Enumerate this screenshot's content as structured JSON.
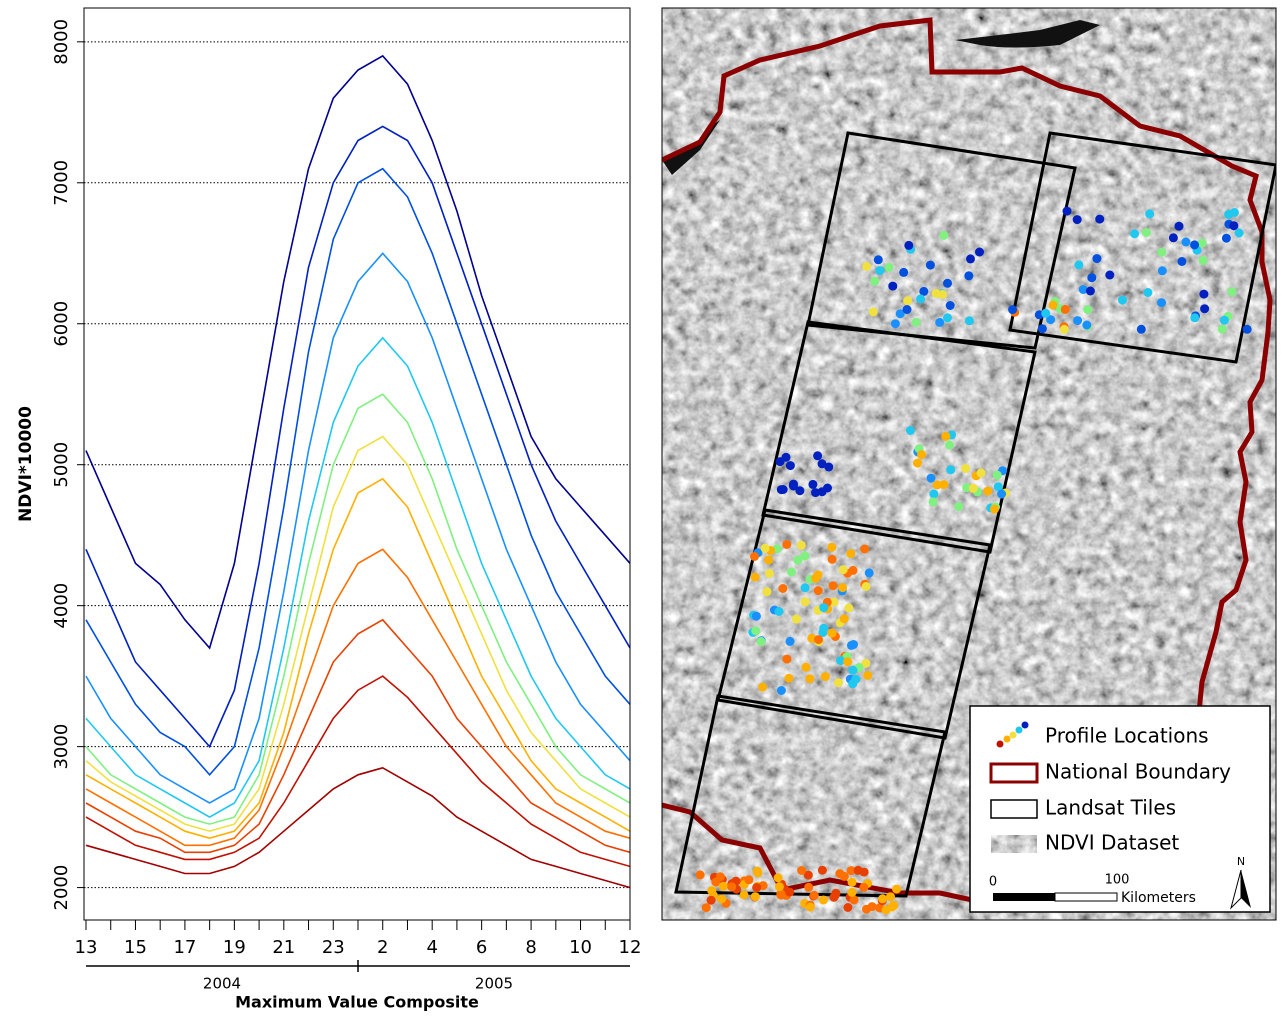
{
  "chart_data": {
    "type": "line",
    "categories": [
      "13",
      null,
      "15",
      null,
      "17",
      null,
      "19",
      null,
      "21",
      null,
      "23",
      null,
      "2",
      null,
      "4",
      null,
      "6",
      null,
      "8",
      null,
      "10",
      null,
      "12"
    ],
    "x_groups": [
      "2004",
      "2005"
    ],
    "xlabel": "Maximum Value Composite",
    "ylabel": "NDVI*10000",
    "ylim": [
      1770,
      8240
    ],
    "yticks": [
      2000,
      3000,
      4000,
      5000,
      6000,
      7000,
      8000
    ],
    "grid": true,
    "series": [
      {
        "color": "#00008f",
        "values": [
          5100,
          4700,
          4300,
          4150,
          3900,
          3700,
          4300,
          5300,
          6300,
          7100,
          7600,
          7800,
          7900,
          7700,
          7300,
          6800,
          6200,
          5700,
          5200,
          4900,
          4700,
          4500,
          4300
        ]
      },
      {
        "color": "#0020c0",
        "values": [
          4400,
          4000,
          3600,
          3400,
          3200,
          3000,
          3400,
          4300,
          5400,
          6400,
          7000,
          7300,
          7400,
          7300,
          7000,
          6500,
          6000,
          5500,
          5000,
          4600,
          4300,
          4000,
          3700
        ]
      },
      {
        "color": "#0050e0",
        "values": [
          3900,
          3600,
          3300,
          3100,
          3000,
          2800,
          3000,
          3700,
          4700,
          5800,
          6600,
          7000,
          7100,
          6900,
          6500,
          6000,
          5500,
          5000,
          4500,
          4100,
          3800,
          3500,
          3300
        ]
      },
      {
        "color": "#1a90ff",
        "values": [
          3500,
          3200,
          3000,
          2800,
          2700,
          2600,
          2700,
          3200,
          4100,
          5100,
          5900,
          6300,
          6500,
          6300,
          5900,
          5400,
          4900,
          4400,
          4000,
          3600,
          3300,
          3100,
          2900
        ]
      },
      {
        "color": "#20c8f0",
        "values": [
          3200,
          3000,
          2800,
          2700,
          2600,
          2500,
          2600,
          2900,
          3700,
          4600,
          5300,
          5700,
          5900,
          5700,
          5300,
          4800,
          4300,
          3900,
          3500,
          3200,
          3000,
          2800,
          2700
        ]
      },
      {
        "color": "#80f080",
        "values": [
          3000,
          2800,
          2700,
          2600,
          2500,
          2450,
          2500,
          2800,
          3500,
          4300,
          5000,
          5400,
          5500,
          5300,
          4900,
          4400,
          4000,
          3600,
          3300,
          3000,
          2800,
          2700,
          2600
        ]
      },
      {
        "color": "#f0e040",
        "values": [
          2900,
          2750,
          2650,
          2550,
          2450,
          2400,
          2450,
          2700,
          3300,
          4000,
          4700,
          5100,
          5200,
          5000,
          4600,
          4200,
          3800,
          3400,
          3100,
          2900,
          2700,
          2600,
          2500
        ]
      },
      {
        "color": "#ffb000",
        "values": [
          2800,
          2700,
          2600,
          2500,
          2400,
          2350,
          2400,
          2600,
          3100,
          3800,
          4400,
          4800,
          4900,
          4700,
          4300,
          3900,
          3500,
          3200,
          2900,
          2700,
          2600,
          2500,
          2400
        ]
      },
      {
        "color": "#ff7000",
        "values": [
          2700,
          2600,
          2500,
          2400,
          2300,
          2300,
          2350,
          2550,
          3000,
          3500,
          4000,
          4300,
          4400,
          4200,
          3900,
          3600,
          3300,
          3000,
          2800,
          2600,
          2500,
          2400,
          2350
        ]
      },
      {
        "color": "#e84000",
        "values": [
          2600,
          2500,
          2400,
          2350,
          2250,
          2250,
          2300,
          2450,
          2800,
          3200,
          3600,
          3800,
          3900,
          3700,
          3500,
          3200,
          3000,
          2800,
          2600,
          2500,
          2400,
          2300,
          2250
        ]
      },
      {
        "color": "#c01000",
        "values": [
          2500,
          2400,
          2300,
          2250,
          2200,
          2200,
          2250,
          2350,
          2600,
          2900,
          3200,
          3400,
          3500,
          3350,
          3150,
          2950,
          2750,
          2600,
          2450,
          2350,
          2250,
          2200,
          2150
        ]
      },
      {
        "color": "#a00000",
        "values": [
          2300,
          2250,
          2200,
          2150,
          2100,
          2100,
          2150,
          2250,
          2400,
          2550,
          2700,
          2800,
          2850,
          2750,
          2650,
          2500,
          2400,
          2300,
          2200,
          2150,
          2100,
          2050,
          2000
        ]
      }
    ]
  },
  "map": {
    "legend": [
      "Profile Locations",
      "National Boundary",
      "Landsat Tiles",
      "NDVI Dataset"
    ],
    "scale": [
      "0",
      "100"
    ],
    "scale_unit": "Kilometers",
    "north": "N"
  }
}
